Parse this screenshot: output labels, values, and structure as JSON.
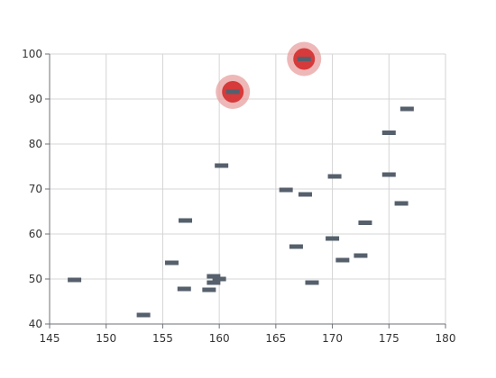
{
  "chart_data": {
    "type": "scatter",
    "title": "",
    "xlabel": "",
    "ylabel": "",
    "xlim": [
      145,
      180
    ],
    "ylim": [
      40,
      100
    ],
    "xticks": [
      145,
      150,
      155,
      160,
      165,
      170,
      175,
      180
    ],
    "yticks": [
      40,
      50,
      60,
      70,
      80,
      90,
      100
    ],
    "grid": true,
    "legend": "none",
    "marker": "rect",
    "colors": {
      "point": "#56606c",
      "highlight": "#d63a3a",
      "highlight_halo": "#e8a0a0",
      "grid": "#d4d4d4",
      "axis": "#6e7079"
    },
    "series": [
      {
        "values": [
          {
            "x": 147.2,
            "y": 49.8
          },
          {
            "x": 153.3,
            "y": 42.0
          },
          {
            "x": 155.8,
            "y": 53.6
          },
          {
            "x": 156.9,
            "y": 47.8
          },
          {
            "x": 157.0,
            "y": 63.0
          },
          {
            "x": 159.1,
            "y": 47.6
          },
          {
            "x": 159.5,
            "y": 50.6
          },
          {
            "x": 159.5,
            "y": 49.2
          },
          {
            "x": 160.0,
            "y": 50.0
          },
          {
            "x": 160.2,
            "y": 75.2
          },
          {
            "x": 161.2,
            "y": 91.6
          },
          {
            "x": 165.9,
            "y": 69.8
          },
          {
            "x": 166.8,
            "y": 57.2
          },
          {
            "x": 167.5,
            "y": 98.9
          },
          {
            "x": 167.6,
            "y": 68.8
          },
          {
            "x": 168.2,
            "y": 49.2
          },
          {
            "x": 170.0,
            "y": 59.0
          },
          {
            "x": 170.2,
            "y": 72.8
          },
          {
            "x": 170.9,
            "y": 54.2
          },
          {
            "x": 172.5,
            "y": 55.2
          },
          {
            "x": 172.9,
            "y": 62.5
          },
          {
            "x": 175.0,
            "y": 82.5
          },
          {
            "x": 175.0,
            "y": 73.2
          },
          {
            "x": 176.1,
            "y": 66.8
          },
          {
            "x": 176.6,
            "y": 87.8
          }
        ]
      }
    ],
    "highlighted": [
      {
        "x": 161.2,
        "y": 91.6
      },
      {
        "x": 167.5,
        "y": 98.9
      }
    ]
  }
}
